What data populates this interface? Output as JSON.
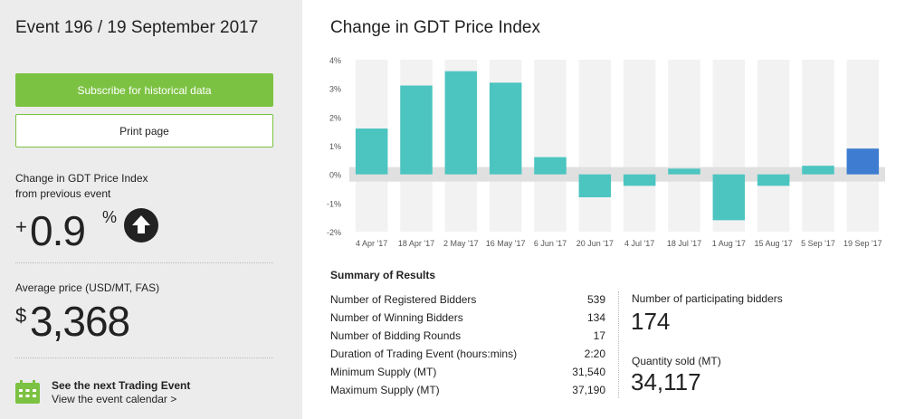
{
  "sidebar": {
    "event_title": "Event 196 / 19 September 2017",
    "subscribe_label": "Subscribe for historical data",
    "print_label": "Print page",
    "change_label_line1": "Change in GDT Price Index",
    "change_label_line2": "from previous event",
    "change_sign": "+",
    "change_value": "0.9",
    "change_unit": "%",
    "avg_label": "Average price (USD/MT, FAS)",
    "avg_currency": "$",
    "avg_value": "3,368",
    "next_event_title": "See the next Trading Event",
    "next_event_link": "View the event calendar >",
    "colors": {
      "green": "#7cc242",
      "panel": "#ececec"
    },
    "icons": {
      "change_direction": "arrow-up-circle-icon",
      "calendar": "calendar-icon"
    }
  },
  "main": {
    "chart_title": "Change in GDT Price Index",
    "summary_title": "Summary of Results",
    "summary_rows": [
      {
        "label": "Number of Registered Bidders",
        "value": "539"
      },
      {
        "label": "Number of Winning Bidders",
        "value": "134"
      },
      {
        "label": "Number of Bidding Rounds",
        "value": "17"
      },
      {
        "label": "Duration of Trading Event (hours:mins)",
        "value": "2:20"
      },
      {
        "label": "Minimum Supply (MT)",
        "value": "31,540"
      },
      {
        "label": "Maximum Supply (MT)",
        "value": "37,190"
      }
    ],
    "participating_label": "Number of participating bidders",
    "participating_value": "174",
    "quantity_label": "Quantity sold (MT)",
    "quantity_value": "34,117"
  },
  "chart_data": {
    "type": "bar",
    "categories": [
      "4 Apr '17",
      "18 Apr '17",
      "2 May '17",
      "16 May '17",
      "6 Jun '17",
      "20 Jun '17",
      "4 Jul '17",
      "18 Jul '17",
      "1 Aug '17",
      "15 Aug '17",
      "5 Sep '17",
      "19 Sep '17"
    ],
    "values": [
      1.6,
      3.1,
      3.6,
      3.2,
      0.6,
      -0.8,
      -0.4,
      0.2,
      -1.6,
      -0.4,
      0.3,
      0.9
    ],
    "ylim": [
      -2,
      4
    ],
    "yticks": [
      4,
      3,
      2,
      1,
      0,
      -1,
      -2
    ],
    "ytick_labels": [
      "4%",
      "3%",
      "2%",
      "1%",
      "0%",
      "-1%",
      "-2%"
    ],
    "colors": {
      "bar": "#4cc5c1",
      "highlight": "#3d7cd0",
      "band": "#f2f2f2",
      "zero_band": "#e0e0e0"
    },
    "highlight_index": 11,
    "grid": false
  }
}
